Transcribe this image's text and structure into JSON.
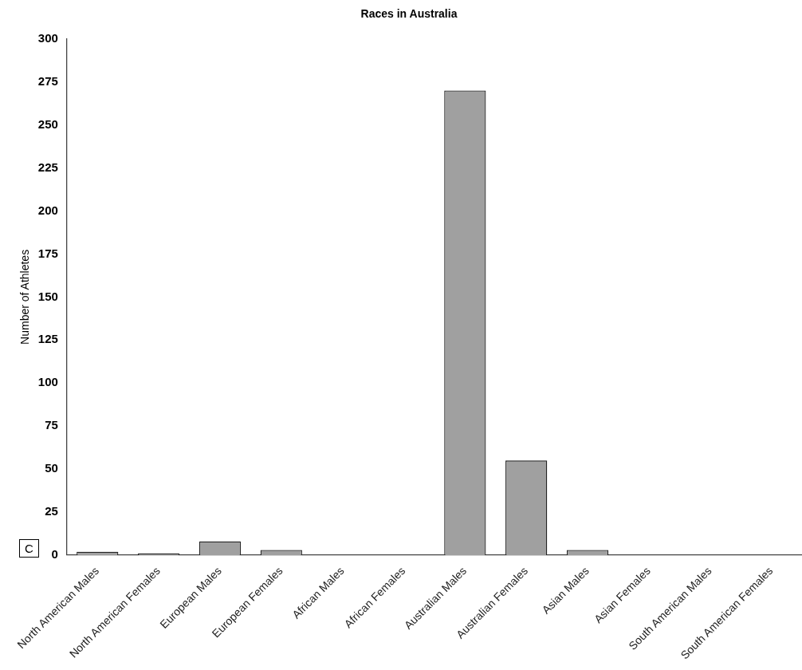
{
  "chart_data": {
    "type": "bar",
    "title": "Races in Australia",
    "ylabel": "Number of Athletes",
    "categories": [
      "North American Males",
      "North American Females",
      "European Males",
      "European Females",
      "African Males",
      "African Females",
      "Australian Males",
      "Australian Females",
      "Asian Males",
      "Asian Females",
      "South American Males",
      "South American Females"
    ],
    "values": [
      2,
      1,
      8,
      3,
      0,
      0,
      270,
      55,
      3,
      0,
      0,
      0
    ],
    "color": "#a0a0a0",
    "ylim": [
      0,
      300
    ],
    "yticks": [
      0,
      25,
      50,
      75,
      100,
      125,
      150,
      175,
      200,
      225,
      250,
      275,
      300
    ],
    "annotations": [
      "C"
    ]
  }
}
